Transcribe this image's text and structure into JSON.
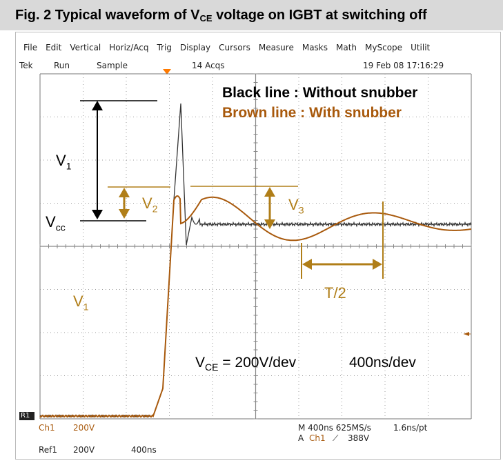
{
  "figure": {
    "title_prefix": "Fig. 2 Typical waveform of V",
    "title_sub": "CE",
    "title_suffix": " voltage on IGBT at switching off"
  },
  "menu": {
    "items": [
      "File",
      "Edit",
      "Vertical",
      "Horiz/Acq",
      "Trig",
      "Display",
      "Cursors",
      "Measure",
      "Masks",
      "Math",
      "MyScope",
      "Utilit"
    ]
  },
  "status": {
    "brand": "Tek",
    "run": "Run",
    "mode": "Sample",
    "acqs": "14 Acqs",
    "datetime": "19 Feb 08 17:16:29"
  },
  "legend": {
    "black": "Black line   : Without snubber",
    "brown": "Brown line :  With snubber"
  },
  "labels": {
    "v1_main": "V",
    "v1_sub": "1",
    "v2": "V",
    "v2_sub": "2",
    "v3": "V",
    "v3_sub": "3",
    "vcc": "V",
    "vcc_sub": "cc",
    "t_half": "T/2",
    "v1_left": "V",
    "v1_left_sub": "1"
  },
  "scale": {
    "prefix": "V",
    "sub": "CE",
    "value": " = 200V/dev",
    "time": "400ns/dev"
  },
  "readout": {
    "ch1": "Ch1",
    "ch1_scale": "200V",
    "ref1": "Ref1",
    "ref1_scale": "200V",
    "ref1_time": "400ns",
    "horiz": "M 400ns 625MS/s",
    "sample": "1.6ns/pt",
    "trig_src": "A",
    "trig_ch": "Ch1",
    "trig_level": "388V",
    "r1": "R1"
  },
  "colors": {
    "brown": "#a8590c",
    "annot": "#b07e18",
    "black": "#333333",
    "grid": "#9a9a9a"
  }
}
